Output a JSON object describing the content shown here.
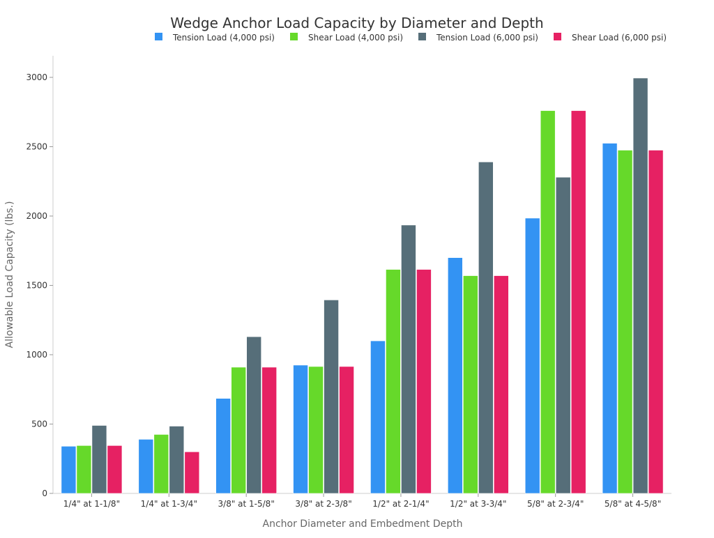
{
  "chart_data": {
    "type": "bar",
    "title": "Wedge Anchor Load Capacity by Diameter and Depth",
    "xlabel": "Anchor Diameter and Embedment Depth",
    "ylabel": "Allowable Load Capacity (lbs.)",
    "ylim": [
      0,
      3150
    ],
    "yticks": [
      0,
      500,
      1000,
      1500,
      2000,
      2500,
      3000
    ],
    "grid": false,
    "legend_position": "top",
    "categories": [
      "1/4\" at 1-1/8\"",
      "1/4\" at 1-3/4\"",
      "3/8\" at 1-5/8\"",
      "3/8\" at 2-3/8\"",
      "1/2\" at 2-1/4\"",
      "1/2\" at 3-3/4\"",
      "5/8\" at 2-3/4\"",
      "5/8\" at 4-5/8\""
    ],
    "series": [
      {
        "name": "Tension Load (4,000 psi)",
        "color": "#3393f3",
        "values": [
          340,
          390,
          685,
          925,
          1100,
          1700,
          1985,
          2525
        ]
      },
      {
        "name": "Shear Load (4,000 psi)",
        "color": "#66d92a",
        "values": [
          345,
          425,
          910,
          915,
          1615,
          1570,
          2760,
          2475
        ]
      },
      {
        "name": "Tension Load (6,000 psi)",
        "color": "#566e79",
        "values": [
          490,
          485,
          1130,
          1395,
          1935,
          2390,
          2280,
          2995
        ]
      },
      {
        "name": "Shear Load (6,000 psi)",
        "color": "#e62163",
        "values": [
          345,
          300,
          910,
          915,
          1615,
          1570,
          2760,
          2475
        ]
      }
    ]
  }
}
